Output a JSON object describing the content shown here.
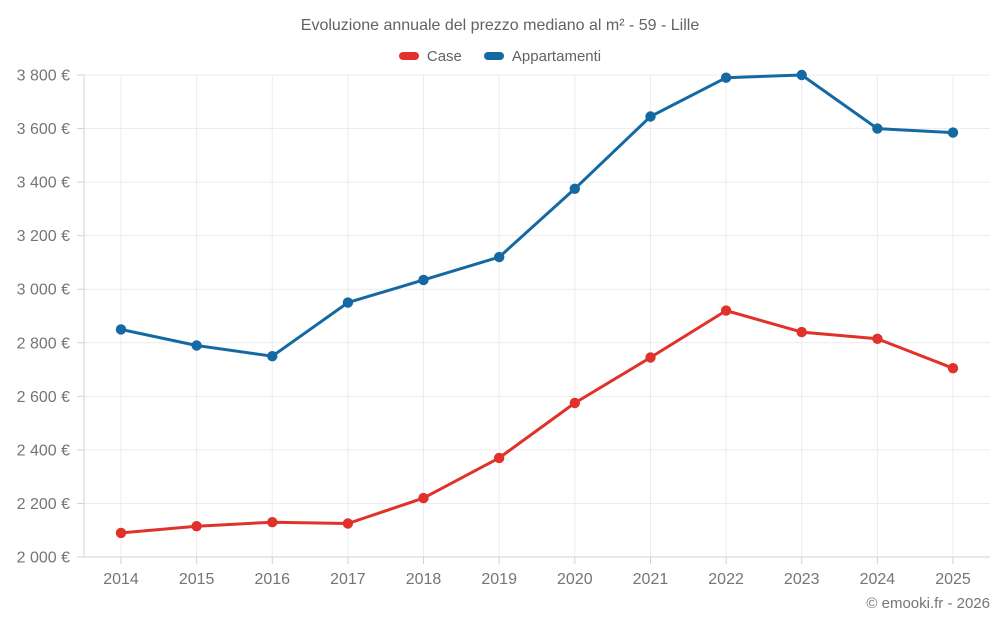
{
  "colors": {
    "case": "#e0312a",
    "appartamenti": "#1569a3",
    "grid": "#ececec",
    "axis": "#d2d2d2",
    "tick_text": "#757575",
    "title_text": "#5f6368",
    "background": "#ffffff"
  },
  "legend": {
    "items": [
      {
        "label": "Case",
        "color_key": "case"
      },
      {
        "label": "Appartamenti",
        "color_key": "appartamenti"
      }
    ]
  },
  "chart_data": {
    "type": "line",
    "title": "Evoluzione annuale del prezzo mediano al m² - 59 - Lille",
    "footer": "© emooki.fr - 2026",
    "x": [
      2014,
      2015,
      2016,
      2017,
      2018,
      2019,
      2020,
      2021,
      2022,
      2023,
      2024,
      2025
    ],
    "x_tick_labels": [
      "2014",
      "2015",
      "2016",
      "2017",
      "2018",
      "2019",
      "2020",
      "2021",
      "2022",
      "2023",
      "2024",
      "2025"
    ],
    "series": [
      {
        "name": "Case",
        "color_key": "case",
        "values": [
          2090,
          2115,
          2130,
          2125,
          2220,
          2370,
          2575,
          2745,
          2920,
          2840,
          2815,
          2705
        ]
      },
      {
        "name": "Appartamenti",
        "color_key": "appartamenti",
        "values": [
          2850,
          2790,
          2750,
          2950,
          3035,
          3120,
          3375,
          3645,
          3790,
          3800,
          3600,
          3585
        ]
      }
    ],
    "ylim": [
      2000,
      3800
    ],
    "y_tick_step": 200,
    "y_tick_suffix": " €",
    "y_tick_labels": [
      "2 000 €",
      "2 200 €",
      "2 400 €",
      "2 600 €",
      "2 800 €",
      "3 000 €",
      "3 200 €",
      "3 400 €",
      "3 600 €",
      "3 800 €"
    ],
    "grid": true,
    "legend_position": "top"
  }
}
